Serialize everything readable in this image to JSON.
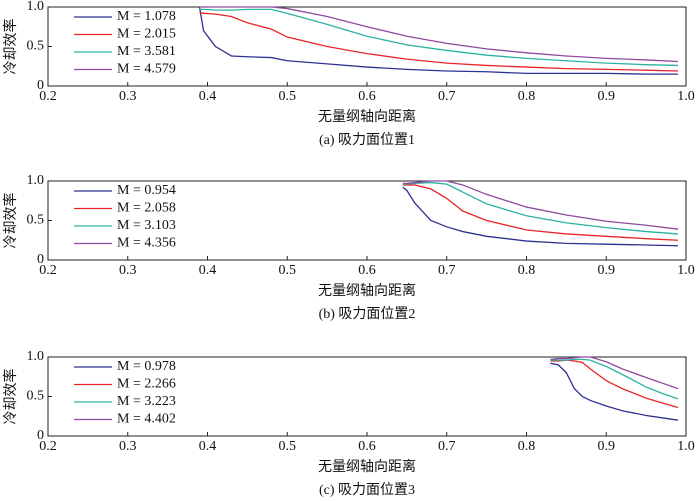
{
  "chart_data": [
    {
      "type": "line",
      "xlabel": "无量纲轴向距离",
      "ylabel": "冷却效率",
      "caption": "(a) 吸力面位置1",
      "x": [
        0.39,
        0.395,
        0.41,
        0.43,
        0.45,
        0.48,
        0.5,
        0.55,
        0.6,
        0.65,
        0.7,
        0.75,
        0.8,
        0.85,
        0.9,
        0.95,
        0.99
      ],
      "series": [
        {
          "name": "M = 1.078",
          "color": "#2e3192",
          "values": [
            1.0,
            0.7,
            0.5,
            0.38,
            0.37,
            0.36,
            0.32,
            0.28,
            0.24,
            0.21,
            0.19,
            0.18,
            0.16,
            0.16,
            0.16,
            0.15,
            0.15
          ]
        },
        {
          "name": "M = 2.015",
          "color": "#e8262a",
          "values": [
            0.93,
            0.92,
            0.91,
            0.88,
            0.8,
            0.72,
            0.62,
            0.5,
            0.41,
            0.34,
            0.29,
            0.26,
            0.24,
            0.22,
            0.21,
            0.2,
            0.19
          ]
        },
        {
          "name": "M = 3.581",
          "color": "#2ab39f",
          "values": [
            0.97,
            0.97,
            0.96,
            0.96,
            0.97,
            0.97,
            0.92,
            0.78,
            0.63,
            0.52,
            0.45,
            0.39,
            0.35,
            0.32,
            0.29,
            0.27,
            0.26
          ]
        },
        {
          "name": "M = 4.579",
          "color": "#8e4a9e",
          "values": [
            1.0,
            1.0,
            1.0,
            1.0,
            1.0,
            1.0,
            0.98,
            0.88,
            0.75,
            0.63,
            0.54,
            0.47,
            0.42,
            0.38,
            0.35,
            0.33,
            0.31
          ]
        }
      ],
      "xlim": [
        0.2,
        1.0
      ],
      "ylim": [
        0,
        1.0
      ],
      "xticks": [
        0.2,
        0.3,
        0.4,
        0.5,
        0.6,
        0.7,
        0.8,
        0.9,
        {
          "value": 1.0,
          "label": "1.0"
        }
      ],
      "yticks": [
        0,
        0.5,
        {
          "value": 1.0,
          "label": "1.0"
        }
      ],
      "legend": "upper left"
    },
    {
      "type": "line",
      "xlabel": "无量纲轴向距离",
      "ylabel": "冷却效率",
      "caption": "(b) 吸力面位置2",
      "x": [
        0.645,
        0.65,
        0.66,
        0.68,
        0.7,
        0.72,
        0.75,
        0.8,
        0.85,
        0.9,
        0.95,
        0.99
      ],
      "series": [
        {
          "name": "M = 0.954",
          "color": "#2e3192",
          "values": [
            0.92,
            0.88,
            0.72,
            0.5,
            0.42,
            0.36,
            0.3,
            0.24,
            0.21,
            0.2,
            0.19,
            0.18
          ]
        },
        {
          "name": "M = 2.058",
          "color": "#e8262a",
          "values": [
            0.95,
            0.95,
            0.95,
            0.9,
            0.78,
            0.62,
            0.5,
            0.38,
            0.33,
            0.3,
            0.27,
            0.25
          ]
        },
        {
          "name": "M = 3.103",
          "color": "#2ab39f",
          "values": [
            0.96,
            0.96,
            0.97,
            0.98,
            0.96,
            0.86,
            0.71,
            0.56,
            0.47,
            0.41,
            0.36,
            0.33
          ]
        },
        {
          "name": "M = 4.356",
          "color": "#8e4a9e",
          "values": [
            0.97,
            0.97,
            0.98,
            1.0,
            1.0,
            0.95,
            0.83,
            0.67,
            0.57,
            0.49,
            0.44,
            0.39
          ]
        }
      ],
      "xlim": [
        0.2,
        1.0
      ],
      "ylim": [
        0,
        1.0
      ],
      "xticks": [
        0.2,
        0.3,
        0.4,
        0.5,
        0.6,
        0.7,
        0.8,
        0.9,
        {
          "value": 1.0,
          "label": "1.0"
        }
      ],
      "yticks": [
        0,
        0.5,
        {
          "value": 1.0,
          "label": "1.0"
        }
      ],
      "legend": "upper left"
    },
    {
      "type": "line",
      "xlabel": "无量纲轴向距离",
      "ylabel": "冷却效率",
      "caption": "(c) 吸力面位置3",
      "x": [
        0.83,
        0.84,
        0.85,
        0.86,
        0.87,
        0.88,
        0.9,
        0.92,
        0.95,
        0.97,
        0.99
      ],
      "series": [
        {
          "name": "M = 0.978",
          "color": "#2e3192",
          "values": [
            0.92,
            0.9,
            0.8,
            0.6,
            0.5,
            0.45,
            0.38,
            0.32,
            0.26,
            0.23,
            0.2
          ]
        },
        {
          "name": "M = 2.266",
          "color": "#e8262a",
          "values": [
            0.95,
            0.95,
            0.96,
            0.95,
            0.93,
            0.85,
            0.7,
            0.6,
            0.48,
            0.42,
            0.36
          ]
        },
        {
          "name": "M = 3.223",
          "color": "#2ab39f",
          "values": [
            0.96,
            0.96,
            0.96,
            0.97,
            0.97,
            0.96,
            0.88,
            0.78,
            0.62,
            0.54,
            0.47
          ]
        },
        {
          "name": "M = 4.402",
          "color": "#8e4a9e",
          "values": [
            0.97,
            0.98,
            0.98,
            0.99,
            1.0,
            1.0,
            0.94,
            0.85,
            0.74,
            0.67,
            0.6
          ]
        }
      ],
      "xlim": [
        0.2,
        1.0
      ],
      "ylim": [
        0,
        1.0
      ],
      "xticks": [
        0.2,
        0.3,
        0.4,
        0.5,
        0.6,
        0.7,
        0.8,
        0.9,
        {
          "value": 1.0,
          "label": "1.0"
        }
      ],
      "yticks": [
        0,
        0.5,
        {
          "value": 1.0,
          "label": "1.0"
        }
      ],
      "legend": "upper left"
    }
  ]
}
